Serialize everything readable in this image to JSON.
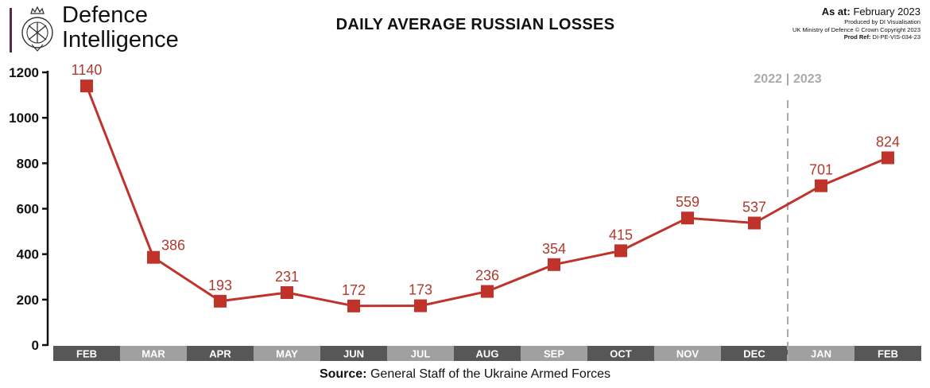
{
  "branding": {
    "line1": "Defence",
    "line2": "Intelligence"
  },
  "header": {
    "as_at_label": "As at:",
    "as_at_value": "February 2023",
    "produced_by": "Produced by DI Visualisation",
    "copyright": "UK Ministry of Defence © Crown Copyright 2023",
    "prod_ref_label": "Prod Ref:",
    "prod_ref_value": "DI-PE-VIS-034-23"
  },
  "source": {
    "label": "Source:",
    "value": "General Staff of the Ukraine Armed Forces"
  },
  "chart_data": {
    "type": "line",
    "title": "DAILY AVERAGE RUSSIAN LOSSES",
    "xlabel": "",
    "ylabel": "",
    "categories": [
      "FEB",
      "MAR",
      "APR",
      "MAY",
      "JUN",
      "JUL",
      "AUG",
      "SEP",
      "OCT",
      "NOV",
      "DEC",
      "JAN",
      "FEB"
    ],
    "series": [
      {
        "values": [
          1140,
          386,
          193,
          231,
          172,
          173,
          236,
          354,
          415,
          559,
          537,
          701,
          824
        ]
      }
    ],
    "data_labels": [
      "1140",
      "386",
      "193",
      "231",
      "172",
      "173",
      "236",
      "354",
      "415",
      "559",
      "537",
      "701",
      "824"
    ],
    "ylim": [
      0,
      1200
    ],
    "yticks": [
      0,
      200,
      400,
      600,
      800,
      1000,
      1200
    ],
    "ytick_labels": [
      "0",
      "200",
      "400",
      "600",
      "800",
      "1000",
      "1200"
    ],
    "year_divider": {
      "after_category_index": 10,
      "label_left": "2022",
      "separator": "|",
      "label_right": "2023"
    },
    "grid": false,
    "colors": {
      "line": "#c0332b",
      "marker": "#c0332b",
      "label": "#b03a2e",
      "band_dark": "#575757",
      "band_light": "#a0a0a0",
      "divider": "#aaaaaa"
    }
  }
}
